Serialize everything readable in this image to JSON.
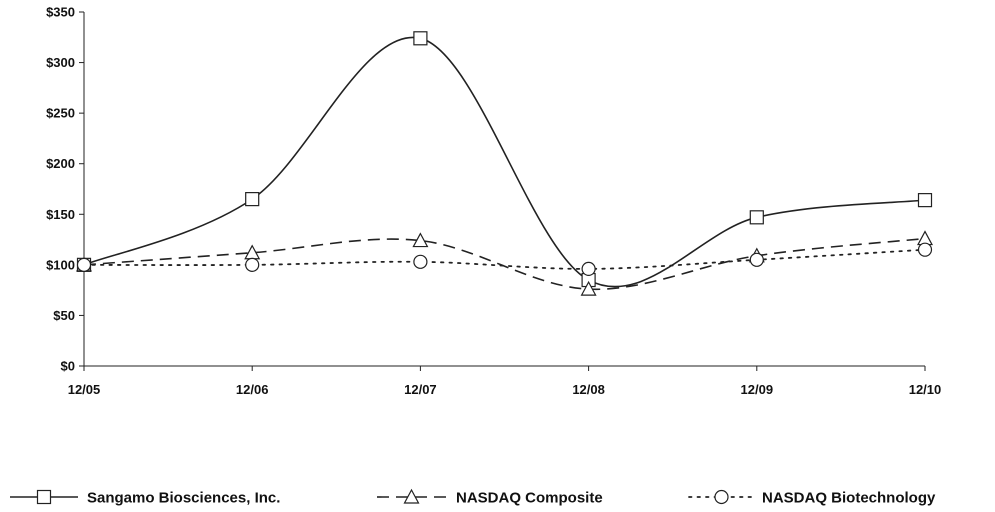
{
  "chart_data": {
    "type": "line",
    "title": "",
    "xlabel": "",
    "ylabel": "",
    "categories": [
      "12/05",
      "12/06",
      "12/07",
      "12/08",
      "12/09",
      "12/10"
    ],
    "ylim": [
      0,
      350
    ],
    "yticks": [
      0,
      50,
      100,
      150,
      200,
      250,
      300,
      350
    ],
    "ytick_labels": [
      "$0",
      "$50",
      "$100",
      "$150",
      "$200",
      "$250",
      "$300",
      "$350"
    ],
    "grid": false,
    "legend_position": "bottom",
    "series": [
      {
        "name": "Sangamo Biosciences, Inc.",
        "values": [
          100,
          165,
          324,
          85,
          147,
          164
        ],
        "marker": "square",
        "dash": "solid",
        "color": "#222222"
      },
      {
        "name": "NASDAQ Composite",
        "values": [
          100,
          112,
          124,
          76,
          109,
          126
        ],
        "marker": "triangle",
        "dash": "dashed",
        "color": "#222222"
      },
      {
        "name": "NASDAQ Biotechnology",
        "values": [
          100,
          100,
          103,
          96,
          105,
          115
        ],
        "marker": "circle",
        "dash": "dotted",
        "color": "#222222"
      }
    ]
  }
}
